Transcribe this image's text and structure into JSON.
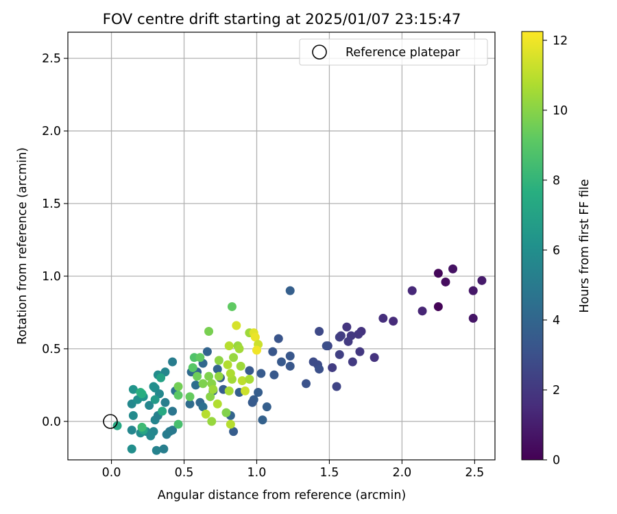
{
  "chart_data": {
    "type": "scatter",
    "title": "FOV centre drift starting at 2025/01/07 23:15:47",
    "xlabel": "Angular distance from reference (arcmin)",
    "ylabel": "Rotation from reference (arcmin)",
    "xlim": [
      -0.3,
      2.64
    ],
    "ylim": [
      -0.265,
      2.68
    ],
    "xticks": [
      0.0,
      0.5,
      1.0,
      1.5,
      2.0,
      2.5
    ],
    "xtick_labels": [
      "0.0",
      "0.5",
      "1.0",
      "1.5",
      "2.0",
      "2.5"
    ],
    "yticks": [
      0.0,
      0.5,
      1.0,
      1.5,
      2.0,
      2.5
    ],
    "ytick_labels": [
      "0.0",
      "0.5",
      "1.0",
      "1.5",
      "2.0",
      "2.5"
    ],
    "grid": true,
    "legend": {
      "placement": "top-right",
      "entries": [
        "Reference platepar"
      ]
    },
    "reference_point": {
      "x": 0.0,
      "y": 0.0,
      "label": "Reference platepar"
    },
    "colorbar": {
      "label": "Hours from first FF file",
      "colormap": "viridis",
      "range": [
        0,
        12.25
      ],
      "ticks": [
        0,
        2,
        4,
        6,
        8,
        10,
        12
      ],
      "tick_labels": [
        "0",
        "2",
        "4",
        "6",
        "8",
        "10",
        "12"
      ]
    },
    "points": [
      {
        "x": 2.25,
        "y": 1.02,
        "c": 0.2
      },
      {
        "x": 2.35,
        "y": 1.05,
        "c": 0.6
      },
      {
        "x": 2.3,
        "y": 0.96,
        "c": 0.4
      },
      {
        "x": 2.25,
        "y": 0.79,
        "c": 0.1
      },
      {
        "x": 2.49,
        "y": 0.9,
        "c": 0.8
      },
      {
        "x": 2.55,
        "y": 0.97,
        "c": 0.9
      },
      {
        "x": 2.49,
        "y": 0.71,
        "c": 0.7
      },
      {
        "x": 2.07,
        "y": 0.9,
        "c": 1.4
      },
      {
        "x": 2.14,
        "y": 0.76,
        "c": 1.3
      },
      {
        "x": 1.87,
        "y": 0.71,
        "c": 1.6
      },
      {
        "x": 1.94,
        "y": 0.69,
        "c": 1.5
      },
      {
        "x": 1.81,
        "y": 0.44,
        "c": 1.8
      },
      {
        "x": 1.62,
        "y": 0.65,
        "c": 1.9
      },
      {
        "x": 1.72,
        "y": 0.62,
        "c": 1.8
      },
      {
        "x": 1.7,
        "y": 0.6,
        "c": 1.9
      },
      {
        "x": 1.65,
        "y": 0.59,
        "c": 2.0
      },
      {
        "x": 1.63,
        "y": 0.55,
        "c": 2.1
      },
      {
        "x": 1.57,
        "y": 0.58,
        "c": 2.3
      },
      {
        "x": 1.58,
        "y": 0.59,
        "c": 2.2
      },
      {
        "x": 1.71,
        "y": 0.48,
        "c": 2.0
      },
      {
        "x": 1.66,
        "y": 0.41,
        "c": 2.1
      },
      {
        "x": 1.57,
        "y": 0.46,
        "c": 2.3
      },
      {
        "x": 1.52,
        "y": 0.37,
        "c": 2.2
      },
      {
        "x": 1.49,
        "y": 0.52,
        "c": 2.5
      },
      {
        "x": 1.55,
        "y": 0.24,
        "c": 2.5
      },
      {
        "x": 1.43,
        "y": 0.62,
        "c": 2.7
      },
      {
        "x": 1.39,
        "y": 0.41,
        "c": 2.8
      },
      {
        "x": 1.42,
        "y": 0.39,
        "c": 2.8
      },
      {
        "x": 1.43,
        "y": 0.36,
        "c": 3.0
      },
      {
        "x": 1.48,
        "y": 0.52,
        "c": 2.9
      },
      {
        "x": 1.34,
        "y": 0.26,
        "c": 3.1
      },
      {
        "x": 1.23,
        "y": 0.9,
        "c": 3.7
      },
      {
        "x": 1.15,
        "y": 0.57,
        "c": 3.2
      },
      {
        "x": 1.23,
        "y": 0.45,
        "c": 3.3
      },
      {
        "x": 1.11,
        "y": 0.48,
        "c": 3.3
      },
      {
        "x": 1.17,
        "y": 0.41,
        "c": 3.4
      },
      {
        "x": 1.23,
        "y": 0.38,
        "c": 3.3
      },
      {
        "x": 1.12,
        "y": 0.32,
        "c": 3.4
      },
      {
        "x": 0.95,
        "y": 0.35,
        "c": 3.4
      },
      {
        "x": 1.03,
        "y": 0.33,
        "c": 3.5
      },
      {
        "x": 0.98,
        "y": 0.15,
        "c": 3.6
      },
      {
        "x": 1.01,
        "y": 0.2,
        "c": 3.6
      },
      {
        "x": 1.07,
        "y": 0.1,
        "c": 3.7
      },
      {
        "x": 1.04,
        "y": 0.01,
        "c": 3.8
      },
      {
        "x": 0.97,
        "y": 0.13,
        "c": 3.5
      },
      {
        "x": 0.84,
        "y": -0.07,
        "c": 3.6
      },
      {
        "x": 0.82,
        "y": 0.04,
        "c": 3.9
      },
      {
        "x": 0.88,
        "y": 0.2,
        "c": 3.7
      },
      {
        "x": 0.77,
        "y": 0.22,
        "c": 3.6
      },
      {
        "x": 0.75,
        "y": 0.3,
        "c": 3.5
      },
      {
        "x": 0.7,
        "y": 0.21,
        "c": 3.8
      },
      {
        "x": 0.73,
        "y": 0.36,
        "c": 3.9
      },
      {
        "x": 0.66,
        "y": 0.48,
        "c": 3.9
      },
      {
        "x": 0.63,
        "y": 0.4,
        "c": 4.1
      },
      {
        "x": 0.59,
        "y": 0.34,
        "c": 4.0
      },
      {
        "x": 0.55,
        "y": 0.34,
        "c": 4.2
      },
      {
        "x": 0.58,
        "y": 0.25,
        "c": 4.4
      },
      {
        "x": 0.54,
        "y": 0.12,
        "c": 4.3
      },
      {
        "x": 0.61,
        "y": 0.13,
        "c": 4.1
      },
      {
        "x": 0.63,
        "y": 0.1,
        "c": 4.5
      },
      {
        "x": 0.44,
        "y": 0.21,
        "c": 4.6
      },
      {
        "x": 0.42,
        "y": 0.41,
        "c": 5.1
      },
      {
        "x": 0.42,
        "y": 0.07,
        "c": 4.8
      },
      {
        "x": 0.42,
        "y": -0.06,
        "c": 4.9
      },
      {
        "x": 0.4,
        "y": -0.07,
        "c": 5.0
      },
      {
        "x": 0.38,
        "y": -0.09,
        "c": 5.1
      },
      {
        "x": 0.36,
        "y": -0.19,
        "c": 5.2
      },
      {
        "x": 0.31,
        "y": -0.2,
        "c": 5.4
      },
      {
        "x": 0.37,
        "y": 0.13,
        "c": 5.2
      },
      {
        "x": 0.37,
        "y": 0.34,
        "c": 5.6
      },
      {
        "x": 0.32,
        "y": 0.32,
        "c": 5.9
      },
      {
        "x": 0.33,
        "y": 0.19,
        "c": 5.7
      },
      {
        "x": 0.3,
        "y": 0.23,
        "c": 5.8
      },
      {
        "x": 0.26,
        "y": 0.11,
        "c": 5.6
      },
      {
        "x": 0.3,
        "y": 0.01,
        "c": 5.5
      },
      {
        "x": 0.32,
        "y": 0.04,
        "c": 5.3
      },
      {
        "x": 0.29,
        "y": -0.07,
        "c": 5.6
      },
      {
        "x": 0.27,
        "y": -0.1,
        "c": 5.7
      },
      {
        "x": 0.24,
        "y": -0.07,
        "c": 5.8
      },
      {
        "x": 0.2,
        "y": -0.08,
        "c": 5.9
      },
      {
        "x": 0.14,
        "y": -0.06,
        "c": 5.6
      },
      {
        "x": 0.14,
        "y": -0.19,
        "c": 6.0
      },
      {
        "x": 0.15,
        "y": 0.04,
        "c": 5.8
      },
      {
        "x": 0.14,
        "y": 0.12,
        "c": 5.7
      },
      {
        "x": 0.18,
        "y": 0.15,
        "c": 6.1
      },
      {
        "x": 0.15,
        "y": 0.22,
        "c": 6.3
      },
      {
        "x": 0.22,
        "y": 0.17,
        "c": 6.2
      },
      {
        "x": 0.29,
        "y": 0.24,
        "c": 6.0
      },
      {
        "x": 0.3,
        "y": 0.15,
        "c": 6.6
      },
      {
        "x": 0.34,
        "y": 0.3,
        "c": 7.0
      },
      {
        "x": 0.35,
        "y": 0.07,
        "c": 7.4
      },
      {
        "x": 0.2,
        "y": 0.2,
        "c": 7.8
      },
      {
        "x": 0.21,
        "y": 0.19,
        "c": 7.6
      },
      {
        "x": 0.22,
        "y": -0.06,
        "c": 7.2
      },
      {
        "x": 0.21,
        "y": -0.04,
        "c": 8.3
      },
      {
        "x": 0.04,
        "y": -0.03,
        "c": 7.3
      },
      {
        "x": 0.46,
        "y": -0.02,
        "c": 8.6
      },
      {
        "x": 0.46,
        "y": 0.18,
        "c": 9.1
      },
      {
        "x": 0.46,
        "y": 0.24,
        "c": 9.6
      },
      {
        "x": 0.54,
        "y": 0.17,
        "c": 9.3
      },
      {
        "x": 0.56,
        "y": 0.37,
        "c": 9.0
      },
      {
        "x": 0.57,
        "y": 0.44,
        "c": 8.8
      },
      {
        "x": 0.61,
        "y": 0.44,
        "c": 9.2
      },
      {
        "x": 0.59,
        "y": 0.31,
        "c": 9.5
      },
      {
        "x": 0.63,
        "y": 0.26,
        "c": 9.8
      },
      {
        "x": 0.67,
        "y": 0.31,
        "c": 9.8
      },
      {
        "x": 0.69,
        "y": 0.26,
        "c": 10.0
      },
      {
        "x": 0.67,
        "y": 0.62,
        "c": 9.7
      },
      {
        "x": 0.74,
        "y": 0.42,
        "c": 10.1
      },
      {
        "x": 0.74,
        "y": 0.31,
        "c": 10.2
      },
      {
        "x": 0.68,
        "y": 0.17,
        "c": 10.0
      },
      {
        "x": 0.7,
        "y": 0.22,
        "c": 10.4
      },
      {
        "x": 0.73,
        "y": 0.12,
        "c": 10.8
      },
      {
        "x": 0.65,
        "y": 0.05,
        "c": 10.9
      },
      {
        "x": 0.69,
        "y": 0.0,
        "c": 10.3
      },
      {
        "x": 0.79,
        "y": 0.06,
        "c": 9.9
      },
      {
        "x": 0.82,
        "y": -0.02,
        "c": 10.9
      },
      {
        "x": 0.81,
        "y": 0.21,
        "c": 10.6
      },
      {
        "x": 0.83,
        "y": 0.29,
        "c": 10.5
      },
      {
        "x": 0.82,
        "y": 0.33,
        "c": 10.7
      },
      {
        "x": 0.8,
        "y": 0.39,
        "c": 10.8
      },
      {
        "x": 0.84,
        "y": 0.44,
        "c": 10.3
      },
      {
        "x": 0.83,
        "y": 0.79,
        "c": 9.2
      },
      {
        "x": 0.81,
        "y": 0.52,
        "c": 10.9
      },
      {
        "x": 0.86,
        "y": 0.66,
        "c": 11.5
      },
      {
        "x": 0.87,
        "y": 0.52,
        "c": 10.3
      },
      {
        "x": 0.88,
        "y": 0.5,
        "c": 10.5
      },
      {
        "x": 0.89,
        "y": 0.38,
        "c": 10.4
      },
      {
        "x": 0.9,
        "y": 0.28,
        "c": 11.0
      },
      {
        "x": 0.92,
        "y": 0.21,
        "c": 11.3
      },
      {
        "x": 0.95,
        "y": 0.29,
        "c": 10.6
      },
      {
        "x": 0.95,
        "y": 0.61,
        "c": 10.4
      },
      {
        "x": 0.98,
        "y": 0.61,
        "c": 11.7
      },
      {
        "x": 0.99,
        "y": 0.58,
        "c": 11.9
      },
      {
        "x": 1.01,
        "y": 0.53,
        "c": 11.3
      },
      {
        "x": 1.0,
        "y": 0.49,
        "c": 12.0
      }
    ]
  }
}
